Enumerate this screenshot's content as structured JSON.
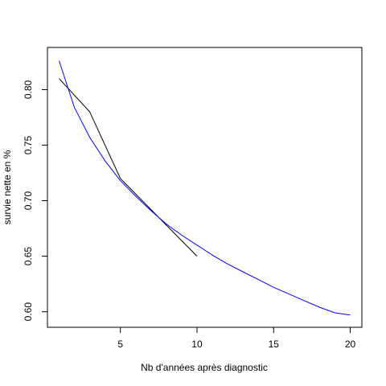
{
  "chart_data": {
    "type": "line",
    "title": "",
    "xlabel": "Nb d'années après diagnostic",
    "ylabel": "survie nette en %",
    "xlim": [
      0.24,
      20.76
    ],
    "ylim": [
      0.586,
      0.838
    ],
    "x_ticks": [
      5,
      10,
      15,
      20
    ],
    "x_tick_labels": [
      "5",
      "10",
      "15",
      "20"
    ],
    "y_ticks": [
      0.6,
      0.65,
      0.7,
      0.75,
      0.8
    ],
    "y_tick_labels": [
      "0.60",
      "0.65",
      "0.70",
      "0.75",
      "0.80"
    ],
    "grid": false,
    "legend": "none",
    "series": [
      {
        "color": "#000000",
        "x": [
          1,
          3,
          5,
          10
        ],
        "y": [
          0.81,
          0.78,
          0.72,
          0.65
        ]
      },
      {
        "color": "#0000ff",
        "x": [
          1,
          2,
          3,
          4,
          5,
          6,
          7,
          8,
          9,
          10,
          11,
          12,
          13,
          14,
          15,
          16,
          17,
          18,
          19,
          20
        ],
        "y": [
          0.826,
          0.784,
          0.757,
          0.736,
          0.718,
          0.704,
          0.691,
          0.679,
          0.669,
          0.66,
          0.651,
          0.643,
          0.636,
          0.629,
          0.622,
          0.616,
          0.61,
          0.604,
          0.599,
          0.597
        ]
      }
    ]
  }
}
